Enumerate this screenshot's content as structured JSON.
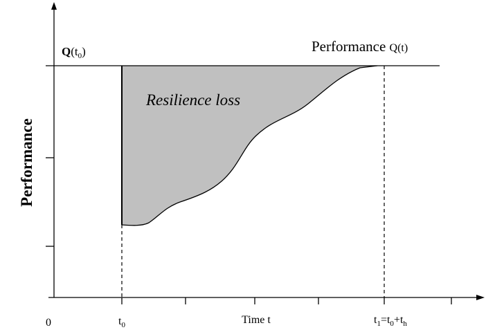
{
  "y_axis_label": "Performance",
  "curve_label": [
    "Performance ",
    "Q(t)"
  ],
  "initial_level": [
    "Q",
    "(t",
    "0",
    ")"
  ],
  "area_label": "Resilience loss",
  "x_axis": {
    "origin": "0",
    "t0": [
      "t",
      "0"
    ],
    "title": "Time t",
    "t1": [
      "t",
      "1",
      "=t",
      "0",
      "+t",
      "h"
    ]
  }
}
